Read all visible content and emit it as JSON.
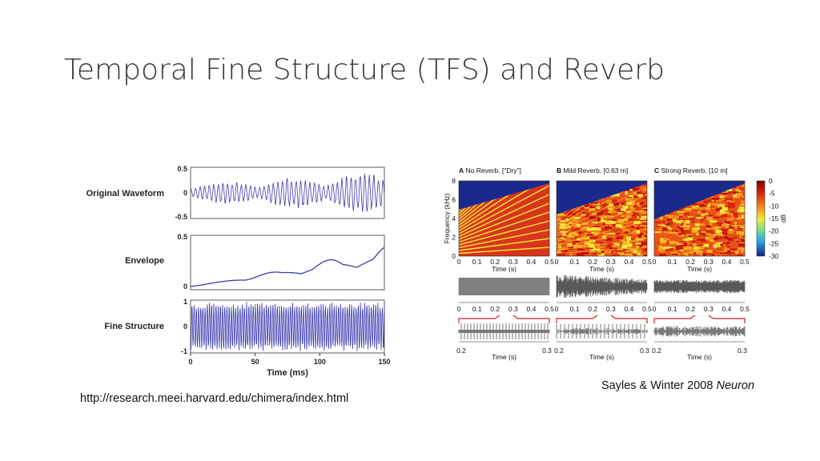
{
  "title": "Temporal Fine Structure (TFS) and Reverb",
  "left_figure": {
    "rows": [
      {
        "label": "Original Waveform",
        "ticks": [
          "0.5",
          "0",
          "-0.5"
        ]
      },
      {
        "label": "Envelope",
        "ticks": [
          "0.5",
          "0"
        ]
      },
      {
        "label": "Fine Structure",
        "ticks": [
          "1",
          "0",
          "-1"
        ]
      }
    ],
    "x_ticks": [
      "0",
      "50",
      "100",
      "150"
    ],
    "x_label": "Time (ms)"
  },
  "url": "http://research.meei.harvard.edu/chimera/index.html",
  "right_figure": {
    "panels": [
      {
        "letter": "A",
        "title": "No Reverb. [\"Dry\"]"
      },
      {
        "letter": "B",
        "title": "Mild Reverb. [0.63 m]"
      },
      {
        "letter": "C",
        "title": "Strong Reverb. [10 m]"
      }
    ],
    "y_label": "Frequency (kHz)",
    "y_ticks": [
      "0",
      "2",
      "4",
      "6",
      "8"
    ],
    "x_ticks": [
      "0",
      "0.1",
      "0.2",
      "0.3",
      "0.4",
      "0.5"
    ],
    "x_label": "Time (s)",
    "colorbar_ticks": [
      "0",
      "-5",
      "-10",
      "-15",
      "-20",
      "-25",
      "-30"
    ],
    "colorbar_label": "dB",
    "zoom_ticks": [
      "0.2",
      "0.3"
    ]
  },
  "citation": {
    "text": "Sayles & Winter 2008",
    "journal": "Neuron"
  }
}
